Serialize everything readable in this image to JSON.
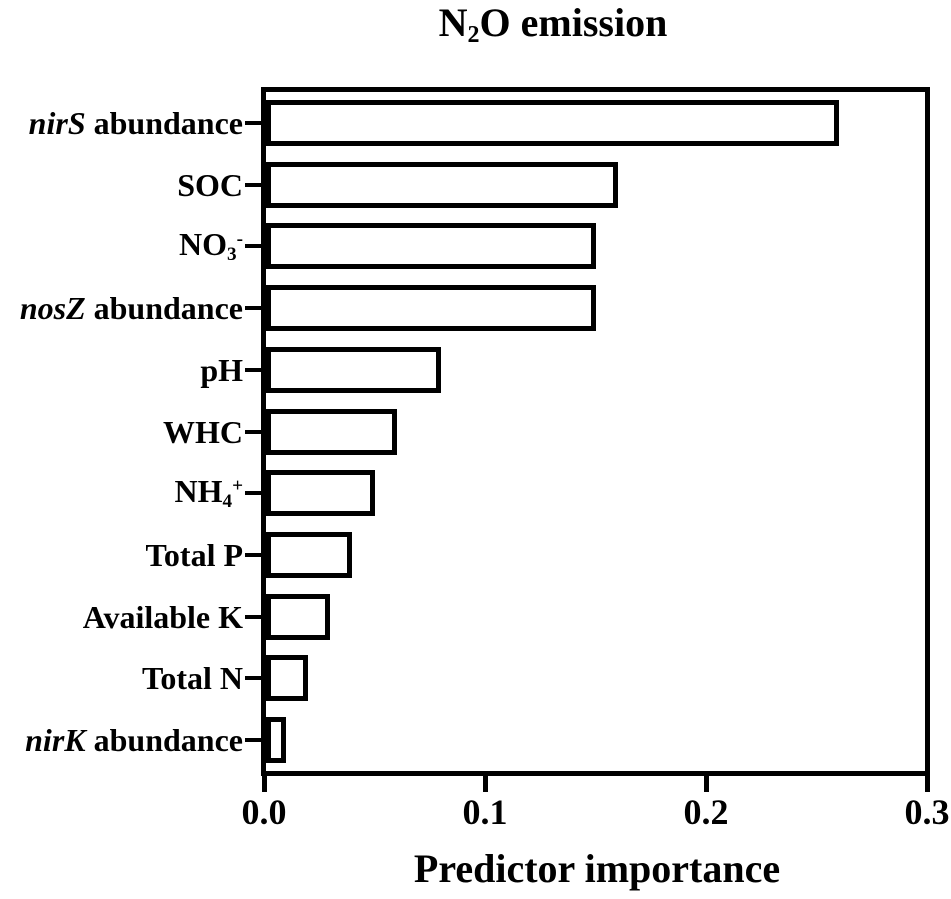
{
  "title": {
    "text": "N2O emission",
    "parts": [
      {
        "t": "N"
      },
      {
        "t": "2",
        "s": "sub"
      },
      {
        "t": "O emission"
      }
    ]
  },
  "colors": {
    "ink": "#000000",
    "background": "#ffffff"
  },
  "x_axis": {
    "label": "Predictor importance",
    "tick_labels": [
      "0.0",
      "0.1",
      "0.2",
      "0.3"
    ]
  },
  "category_parts": [
    [
      {
        "t": "nirS",
        "s": "i"
      },
      {
        "t": " abundance"
      }
    ],
    [
      {
        "t": "SOC"
      }
    ],
    [
      {
        "t": "NO"
      },
      {
        "t": "3",
        "s": "sub"
      },
      {
        "t": "-",
        "s": "sup"
      }
    ],
    [
      {
        "t": "nosZ",
        "s": "i"
      },
      {
        "t": " abundance"
      }
    ],
    [
      {
        "t": "pH"
      }
    ],
    [
      {
        "t": "WHC"
      }
    ],
    [
      {
        "t": "NH"
      },
      {
        "t": "4",
        "s": "sub"
      },
      {
        "t": "+",
        "s": "sup"
      }
    ],
    [
      {
        "t": "Total P"
      }
    ],
    [
      {
        "t": "Available K"
      }
    ],
    [
      {
        "t": "Total N"
      }
    ],
    [
      {
        "t": "nirK",
        "s": "i"
      },
      {
        "t": " abundance"
      }
    ]
  ],
  "chart_data": {
    "type": "bar",
    "orientation": "horizontal",
    "title": "N2O emission",
    "categories": [
      "nirS abundance",
      "SOC",
      "NO3-",
      "nosZ abundance",
      "pH",
      "WHC",
      "NH4+",
      "Total P",
      "Available K",
      "Total N",
      "nirK abundance"
    ],
    "values": [
      0.26,
      0.16,
      0.15,
      0.15,
      0.08,
      0.06,
      0.05,
      0.04,
      0.03,
      0.02,
      0.01
    ],
    "xlabel": "Predictor importance",
    "ylabel": "",
    "xlim": [
      0.0,
      0.3
    ],
    "xticks": [
      0.0,
      0.1,
      0.2,
      0.3
    ],
    "grid": false,
    "legend": false,
    "bar_fill": "#ffffff",
    "bar_stroke": "#000000"
  }
}
